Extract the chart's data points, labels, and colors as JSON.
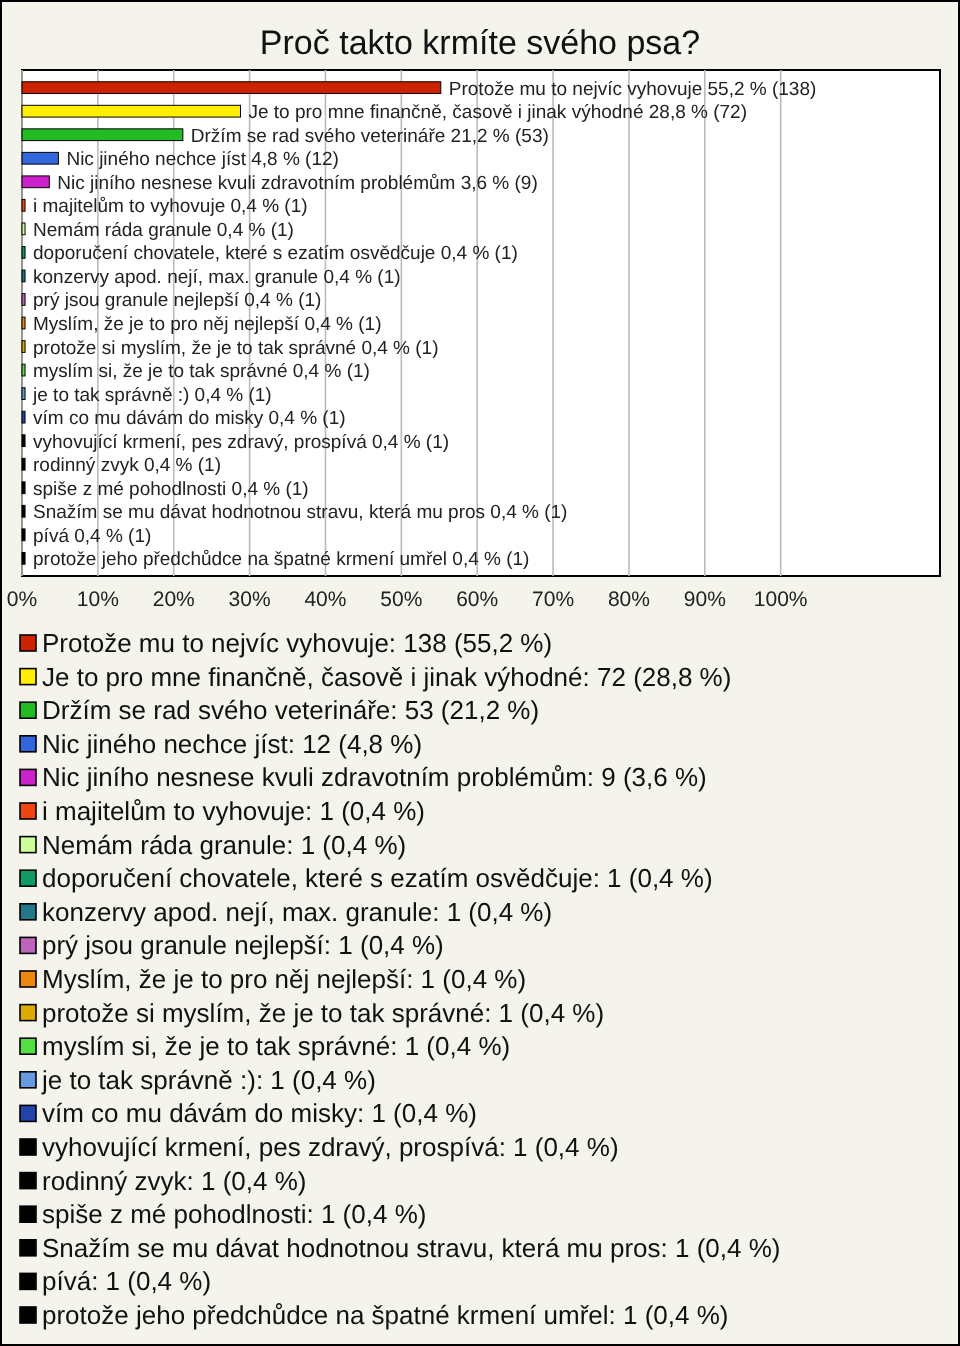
{
  "chart_data": {
    "type": "bar",
    "orientation": "horizontal",
    "stacked": true,
    "title": "Proč takto krmíte svého psa?",
    "categories": [
      "Protože mu to nejvíc vyhovuje 55,2 % (138)",
      "Je to pro mne finančně, časově i jinak výhodné 28,8 % (72)",
      "Držím se rad svého veterináře 21,2 % (53)",
      "Nic jiného nechce jíst 4,8 % (12)",
      "Nic jiního nesnese kvuli zdravotním problémům 3,6 % (9)",
      "i majitelům to vyhovuje 0,4 % (1)",
      "Nemám ráda granule 0,4 % (1)",
      "doporučení chovatele, které s ezatím osvědčuje 0,4 % (1)",
      "konzervy apod. nejí, max. granule 0,4 % (1)",
      "prý jsou granule nejlepší 0,4 % (1)",
      "Myslím, že je to pro něj nejlepší 0,4 % (1)",
      "protože si myslím, že je to tak správné 0,4 % (1)",
      "myslím si, že je to tak správné 0,4 % (1)",
      "je to tak správně :) 0,4 % (1)",
      "vím co mu dávám do misky 0,4 % (1)",
      "vyhovující krmení, pes zdravý, prospívá 0,4 % (1)",
      "rodinný zvyk 0,4 % (1)",
      "spiše z mé pohodlnosti 0,4 % (1)",
      "Snažím se mu dávat hodnotnou stravu, která mu pros 0,4 % (1)",
      "pívá 0,4 % (1)",
      "protože jeho předchůdce na špatné krmení umřel 0,4 % (1)"
    ],
    "series": [
      {
        "name": "Protože mu to nejvíc vyhovuje: 138 (55,2 %)",
        "color": "#cc2200",
        "values": [
          55.2,
          null,
          null,
          null,
          null,
          null,
          null,
          null,
          null,
          null,
          null,
          null,
          null,
          null,
          null,
          null,
          null,
          null,
          null,
          null,
          null
        ]
      },
      {
        "name": "Je to pro mne finančně, časově i jinak výhodné: 72 (28,8 %)",
        "color": "#ffee00",
        "values": [
          null,
          28.8,
          null,
          null,
          null,
          null,
          null,
          null,
          null,
          null,
          null,
          null,
          null,
          null,
          null,
          null,
          null,
          null,
          null,
          null,
          null
        ]
      },
      {
        "name": "Držím se rad svého veterináře: 53 (21,2 %)",
        "color": "#22bb22",
        "values": [
          null,
          null,
          21.2,
          null,
          null,
          null,
          null,
          null,
          null,
          null,
          null,
          null,
          null,
          null,
          null,
          null,
          null,
          null,
          null,
          null,
          null
        ]
      },
      {
        "name": "Nic jiného nechce jíst: 12 (4,8 %)",
        "color": "#3366dd",
        "values": [
          null,
          null,
          null,
          4.8,
          null,
          null,
          null,
          null,
          null,
          null,
          null,
          null,
          null,
          null,
          null,
          null,
          null,
          null,
          null,
          null,
          null
        ]
      },
      {
        "name": "Nic jiního nesnese kvuli zdravotním problémům: 9 (3,6 %)",
        "color": "#cc22cc",
        "values": [
          null,
          null,
          null,
          null,
          3.6,
          null,
          null,
          null,
          null,
          null,
          null,
          null,
          null,
          null,
          null,
          null,
          null,
          null,
          null,
          null,
          null
        ]
      },
      {
        "name": "i majitelům to vyhovuje: 1 (0,4 %)",
        "color": "#ee4411",
        "values": [
          null,
          null,
          null,
          null,
          null,
          0.4,
          null,
          null,
          null,
          null,
          null,
          null,
          null,
          null,
          null,
          null,
          null,
          null,
          null,
          null,
          null
        ]
      },
      {
        "name": "Nemám ráda granule: 1 (0,4 %)",
        "color": "#ccff99",
        "values": [
          null,
          null,
          null,
          null,
          null,
          null,
          0.4,
          null,
          null,
          null,
          null,
          null,
          null,
          null,
          null,
          null,
          null,
          null,
          null,
          null,
          null
        ]
      },
      {
        "name": "doporučení chovatele, které s ezatím osvědčuje: 1 (0,4 %)",
        "color": "#119966",
        "values": [
          null,
          null,
          null,
          null,
          null,
          null,
          null,
          0.4,
          null,
          null,
          null,
          null,
          null,
          null,
          null,
          null,
          null,
          null,
          null,
          null,
          null
        ]
      },
      {
        "name": "konzervy apod. nejí, max. granule: 1 (0,4 %)",
        "color": "#227788",
        "values": [
          null,
          null,
          null,
          null,
          null,
          null,
          null,
          null,
          0.4,
          null,
          null,
          null,
          null,
          null,
          null,
          null,
          null,
          null,
          null,
          null,
          null
        ]
      },
      {
        "name": "prý jsou granule nejlepší: 1 (0,4 %)",
        "color": "#bb66bb",
        "values": [
          null,
          null,
          null,
          null,
          null,
          null,
          null,
          null,
          null,
          0.4,
          null,
          null,
          null,
          null,
          null,
          null,
          null,
          null,
          null,
          null,
          null
        ]
      },
      {
        "name": "Myslím, že je to pro něj nejlepší: 1 (0,4 %)",
        "color": "#ee8811",
        "values": [
          null,
          null,
          null,
          null,
          null,
          null,
          null,
          null,
          null,
          null,
          0.4,
          null,
          null,
          null,
          null,
          null,
          null,
          null,
          null,
          null,
          null
        ]
      },
      {
        "name": "protože si myslím, že je to tak správné: 1 (0,4 %)",
        "color": "#ddaa00",
        "values": [
          null,
          null,
          null,
          null,
          null,
          null,
          null,
          null,
          null,
          null,
          null,
          0.4,
          null,
          null,
          null,
          null,
          null,
          null,
          null,
          null,
          null
        ]
      },
      {
        "name": "myslím si, že je to tak správné: 1 (0,4 %)",
        "color": "#55dd44",
        "values": [
          null,
          null,
          null,
          null,
          null,
          null,
          null,
          null,
          null,
          null,
          null,
          null,
          0.4,
          null,
          null,
          null,
          null,
          null,
          null,
          null,
          null
        ]
      },
      {
        "name": "je to tak správně :): 1 (0,4 %)",
        "color": "#6699dd",
        "values": [
          null,
          null,
          null,
          null,
          null,
          null,
          null,
          null,
          null,
          null,
          null,
          null,
          null,
          0.4,
          null,
          null,
          null,
          null,
          null,
          null,
          null
        ]
      },
      {
        "name": "vím co mu dávám do misky: 1 (0,4 %)",
        "color": "#2244aa",
        "values": [
          null,
          null,
          null,
          null,
          null,
          null,
          null,
          null,
          null,
          null,
          null,
          null,
          null,
          null,
          0.4,
          null,
          null,
          null,
          null,
          null,
          null
        ]
      },
      {
        "name": "vyhovující krmení, pes zdravý, prospívá: 1 (0,4 %)",
        "color": "#000000",
        "values": [
          null,
          null,
          null,
          null,
          null,
          null,
          null,
          null,
          null,
          null,
          null,
          null,
          null,
          null,
          null,
          0.4,
          null,
          null,
          null,
          null,
          null
        ]
      },
      {
        "name": "rodinný zvyk: 1 (0,4 %)",
        "color": "#000000",
        "values": [
          null,
          null,
          null,
          null,
          null,
          null,
          null,
          null,
          null,
          null,
          null,
          null,
          null,
          null,
          null,
          null,
          0.4,
          null,
          null,
          null,
          null
        ]
      },
      {
        "name": "spiše z mé pohodlnosti: 1 (0,4 %)",
        "color": "#000000",
        "values": [
          null,
          null,
          null,
          null,
          null,
          null,
          null,
          null,
          null,
          null,
          null,
          null,
          null,
          null,
          null,
          null,
          null,
          0.4,
          null,
          null,
          null
        ]
      },
      {
        "name": "Snažím se mu dávat hodnotnou stravu, která mu pros: 1 (0,4 %)",
        "color": "#000000",
        "values": [
          null,
          null,
          null,
          null,
          null,
          null,
          null,
          null,
          null,
          null,
          null,
          null,
          null,
          null,
          null,
          null,
          null,
          null,
          0.4,
          null,
          null
        ]
      },
      {
        "name": "pívá: 1 (0,4 %)",
        "color": "#000000",
        "values": [
          null,
          null,
          null,
          null,
          null,
          null,
          null,
          null,
          null,
          null,
          null,
          null,
          null,
          null,
          null,
          null,
          null,
          null,
          null,
          0.4,
          null
        ]
      },
      {
        "name": "protože jeho předchůdce na špatné krmení umřel: 1 (0,4 %)",
        "color": "#000000",
        "values": [
          null,
          null,
          null,
          null,
          null,
          null,
          null,
          null,
          null,
          null,
          null,
          null,
          null,
          null,
          null,
          null,
          null,
          null,
          null,
          null,
          0.4
        ]
      }
    ],
    "xlim": [
      0,
      121
    ],
    "xticks": [
      {
        "value": 0,
        "label": "0%"
      },
      {
        "value": 10,
        "label": "10%"
      },
      {
        "value": 20,
        "label": "20%"
      },
      {
        "value": 30,
        "label": "30%"
      },
      {
        "value": 40,
        "label": "40%"
      },
      {
        "value": 50,
        "label": "50%"
      },
      {
        "value": 60,
        "label": "60%"
      },
      {
        "value": 70,
        "label": "70%"
      },
      {
        "value": 80,
        "label": "80%"
      },
      {
        "value": 90,
        "label": "90%"
      },
      {
        "value": 100,
        "label": "100%"
      }
    ],
    "grid": "x",
    "legend": "bottom"
  }
}
